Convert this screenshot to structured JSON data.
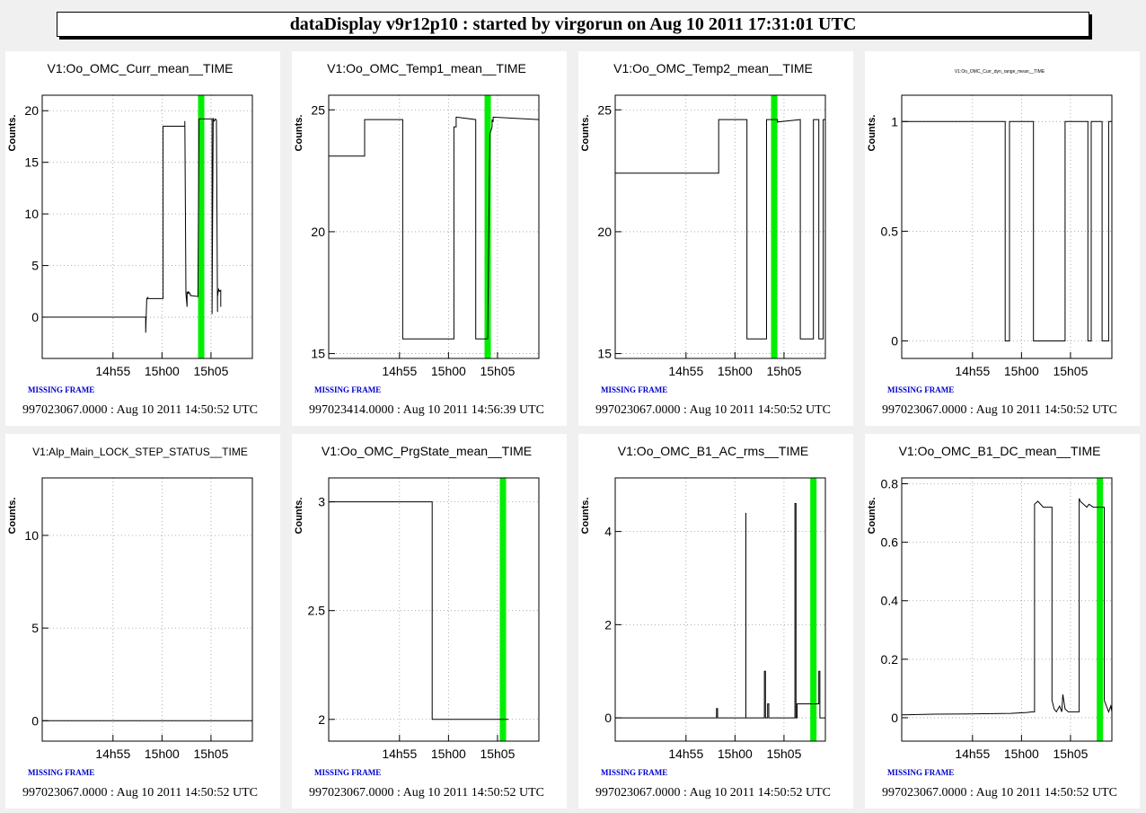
{
  "header": {
    "title": "dataDisplay v9r12p10 : started by virgorun on Aug 10 2011 17:31:01 UTC"
  },
  "colors": {
    "background": "#f0f0f0",
    "panel": "#ffffff",
    "trace": "#000000",
    "cursor": "#00ee00",
    "missing": "#0000cc",
    "grid": "#9a9a9a"
  },
  "chart_data": [
    {
      "type": "line",
      "title": "V1:Oo_OMC_Curr_mean__TIME",
      "title_small": false,
      "ylabel": "Counts.",
      "xlim": [
        890,
        1083
      ],
      "ylim": [
        -4,
        21.5
      ],
      "yticks": [
        0,
        5,
        10,
        15,
        20
      ],
      "yticklabels": [
        "0",
        "5",
        "10",
        "15",
        "20"
      ],
      "xticks": [
        955,
        1000,
        1045
      ],
      "xticklabels": [
        "14h55",
        "15h00",
        "15h05"
      ],
      "grid": true,
      "cursor": 1036,
      "missing_frame": "MISSING FRAME",
      "footer": "997023067.0000 : Aug 10 2011 14:50:52 UTC",
      "series": [
        {
          "x": [
            890,
            985,
            985,
            986,
            987,
            987,
            1001,
            1001,
            1021,
            1021,
            1022,
            1022,
            1023,
            1023,
            1024,
            1024,
            1025,
            1025,
            1026,
            1026,
            1033,
            1033,
            1034,
            1046,
            1046,
            1047,
            1047,
            1048,
            1049,
            1050,
            1051,
            1051,
            1052,
            1053,
            1054,
            1054
          ],
          "y": [
            0,
            0,
            -1.5,
            1.8,
            1.9,
            1.8,
            1.8,
            18.5,
            18.5,
            19,
            2.5,
            2.3,
            1,
            2.4,
            2.3,
            2.5,
            2.3,
            2.4,
            2.2,
            2.1,
            2.0,
            2.0,
            19.2,
            19.2,
            0.3,
            19.3,
            19.2,
            19.0,
            19.2,
            19.1,
            0.5,
            2.0,
            2.7,
            2.5,
            2.6,
            1.0
          ]
        }
      ]
    },
    {
      "type": "line",
      "title": "V1:Oo_OMC_Temp1_mean__TIME",
      "title_small": false,
      "ylabel": "Counts.",
      "xlim": [
        890,
        1083
      ],
      "ylim": [
        14.8,
        25.6
      ],
      "yticks": [
        15,
        20,
        25
      ],
      "yticklabels": [
        "15",
        "20",
        "25"
      ],
      "xticks": [
        955,
        1000,
        1045
      ],
      "xticklabels": [
        "14h55",
        "15h00",
        "15h05"
      ],
      "grid": true,
      "cursor": 1036,
      "missing_frame": "MISSING FRAME",
      "footer": "997023414.0000 : Aug 10 2011 14:56:39 UTC",
      "series": [
        {
          "x": [
            890,
            923,
            923,
            958,
            958,
            1005,
            1005,
            1005,
            1007,
            1007,
            1025,
            1025,
            1033,
            1036,
            1038,
            1040,
            1040,
            1041,
            1041,
            1083
          ],
          "y": [
            23.1,
            23.1,
            24.6,
            24.6,
            15.6,
            15.6,
            24.0,
            24.3,
            24.3,
            24.7,
            24.6,
            15.6,
            15.6,
            15.6,
            24.0,
            24.3,
            24.6,
            24.5,
            24.7,
            24.6
          ]
        }
      ]
    },
    {
      "type": "line",
      "title": "V1:Oo_OMC_Temp2_mean__TIME",
      "title_small": false,
      "ylabel": "Counts.",
      "xlim": [
        890,
        1083
      ],
      "ylim": [
        14.8,
        25.6
      ],
      "yticks": [
        15,
        20,
        25
      ],
      "yticklabels": [
        "15",
        "20",
        "25"
      ],
      "xticks": [
        955,
        1000,
        1045
      ],
      "xticklabels": [
        "14h55",
        "15h00",
        "15h05"
      ],
      "grid": true,
      "cursor": 1036,
      "missing_frame": "MISSING FRAME",
      "footer": "997023067.0000 : Aug 10 2011 14:50:52 UTC",
      "series": [
        {
          "x": [
            890,
            985,
            985,
            1011,
            1011,
            1029,
            1029,
            1039,
            1039,
            1060,
            1060,
            1072,
            1072,
            1077,
            1077,
            1081,
            1081,
            1083
          ],
          "y": [
            22.4,
            22.4,
            24.6,
            24.6,
            15.6,
            15.6,
            24.6,
            24.6,
            24.5,
            24.6,
            15.6,
            15.6,
            24.6,
            24.6,
            15.6,
            15.6,
            24.6,
            24.6
          ]
        }
      ]
    },
    {
      "type": "line",
      "title": "V1:Oo_OMC_Curr_dyn_range_mean__TIME",
      "title_small": true,
      "ylabel": "Counts.",
      "xlim": [
        890,
        1083
      ],
      "ylim": [
        -0.08,
        1.12
      ],
      "yticks": [
        0,
        0.5,
        1
      ],
      "yticklabels": [
        "0",
        "0.5",
        "1"
      ],
      "xticks": [
        955,
        1000,
        1045
      ],
      "xticklabels": [
        "14h55",
        "15h00",
        "15h05"
      ],
      "grid": true,
      "cursor": null,
      "missing_frame": "MISSING FRAME",
      "footer": "997023067.0000 : Aug 10 2011 14:50:52 UTC",
      "series": [
        {
          "x": [
            890,
            985,
            985,
            989,
            989,
            1011,
            1011,
            1040,
            1040,
            1061,
            1061,
            1064,
            1064,
            1074,
            1074,
            1080,
            1080,
            1083,
            1083
          ],
          "y": [
            1,
            1,
            0,
            0,
            1,
            1,
            0,
            0,
            1,
            1,
            0,
            0,
            1,
            1,
            0,
            0,
            1,
            1,
            0
          ]
        }
      ]
    },
    {
      "type": "line",
      "title": "V1:Alp_Main_LOCK_STEP_STATUS__TIME",
      "title_small": false,
      "title_size": 12,
      "ylabel": "Counts.",
      "xlim": [
        890,
        1083
      ],
      "ylim": [
        -1.1,
        13.1
      ],
      "yticks": [
        0,
        5,
        10
      ],
      "yticklabels": [
        "0",
        "5",
        "10"
      ],
      "xticks": [
        955,
        1000,
        1045
      ],
      "xticklabels": [
        "14h55",
        "15h00",
        "15h05"
      ],
      "grid": true,
      "cursor": null,
      "missing_frame": "MISSING FRAME",
      "footer": "997023067.0000 : Aug 10 2011 14:50:52 UTC",
      "series": [
        {
          "x": [
            890,
            1083
          ],
          "y": [
            0,
            0
          ]
        }
      ]
    },
    {
      "type": "line",
      "title": "V1:Oo_OMC_PrgState_mean__TIME",
      "title_small": false,
      "ylabel": "Counts.",
      "xlim": [
        890,
        1083
      ],
      "ylim": [
        1.9,
        3.11
      ],
      "yticks": [
        2,
        2.5,
        3
      ],
      "yticklabels": [
        "2",
        "2.5",
        "3"
      ],
      "xticks": [
        955,
        1000,
        1045
      ],
      "xticklabels": [
        "14h55",
        "15h00",
        "15h05"
      ],
      "grid": true,
      "cursor": 1050,
      "missing_frame": "MISSING FRAME",
      "footer": "997023067.0000 : Aug 10 2011 14:50:52 UTC",
      "series": [
        {
          "x": [
            890,
            985,
            985,
            1055
          ],
          "y": [
            3,
            3,
            2,
            2
          ]
        }
      ]
    },
    {
      "type": "line",
      "title": "V1:Oo_OMC_B1_AC_rms__TIME",
      "title_small": false,
      "ylabel": "Counts.",
      "xlim": [
        890,
        1083
      ],
      "ylim": [
        -0.5,
        5.15
      ],
      "yticks": [
        0,
        2,
        4
      ],
      "yticklabels": [
        "0",
        "2",
        "4"
      ],
      "xticks": [
        955,
        1000,
        1045
      ],
      "xticklabels": [
        "14h55",
        "15h00",
        "15h05"
      ],
      "grid": true,
      "cursor": 1072,
      "missing_frame": "MISSING FRAME",
      "footer": "997023067.0000 : Aug 10 2011 14:50:52 UTC",
      "series": [
        {
          "x": [
            890,
            983,
            983,
            984,
            984,
            1010,
            1010,
            1010,
            1011,
            1011,
            1027,
            1027,
            1028,
            1028,
            1030,
            1030,
            1031,
            1031,
            1055,
            1055,
            1056,
            1056,
            1057,
            1057,
            1077,
            1077,
            1078,
            1078,
            1083
          ],
          "y": [
            0,
            0,
            0.2,
            0.2,
            0,
            0,
            4.4,
            0,
            0,
            0,
            0,
            1.0,
            1.0,
            0,
            0,
            0.3,
            0.3,
            0,
            0,
            4.6,
            4.6,
            0,
            0,
            0.3,
            0.3,
            1.0,
            1.0,
            0,
            0
          ]
        }
      ]
    },
    {
      "type": "line",
      "title": "V1:Oo_OMC_B1_DC_mean__TIME",
      "title_small": false,
      "ylabel": "Counts.",
      "xlim": [
        890,
        1083
      ],
      "ylim": [
        -0.08,
        0.82
      ],
      "yticks": [
        0,
        0.2,
        0.4,
        0.6,
        0.8
      ],
      "yticklabels": [
        "0",
        "0.2",
        "0.4",
        "0.6",
        "0.8"
      ],
      "xticks": [
        955,
        1000,
        1045
      ],
      "xticklabels": [
        "14h55",
        "15h00",
        "15h05"
      ],
      "grid": true,
      "cursor": 1072,
      "missing_frame": "MISSING FRAME",
      "footer": "997023067.0000 : Aug 10 2011 14:50:52 UTC",
      "series": [
        {
          "x": [
            890,
            920,
            950,
            990,
            1005,
            1010,
            1012,
            1012,
            1015,
            1020,
            1028,
            1028,
            1030,
            1032,
            1035,
            1037,
            1038,
            1040,
            1043,
            1047,
            1053,
            1053,
            1054,
            1060,
            1062,
            1066,
            1070,
            1076,
            1076,
            1080,
            1082,
            1083
          ],
          "y": [
            0.01,
            0.012,
            0.013,
            0.015,
            0.018,
            0.02,
            0.02,
            0.73,
            0.74,
            0.72,
            0.72,
            0.06,
            0.03,
            0.02,
            0.04,
            0.02,
            0.08,
            0.03,
            0.02,
            0.02,
            0.02,
            0.75,
            0.74,
            0.72,
            0.73,
            0.72,
            0.72,
            0.72,
            0.06,
            0.02,
            0.04,
            0.02
          ]
        }
      ]
    }
  ]
}
